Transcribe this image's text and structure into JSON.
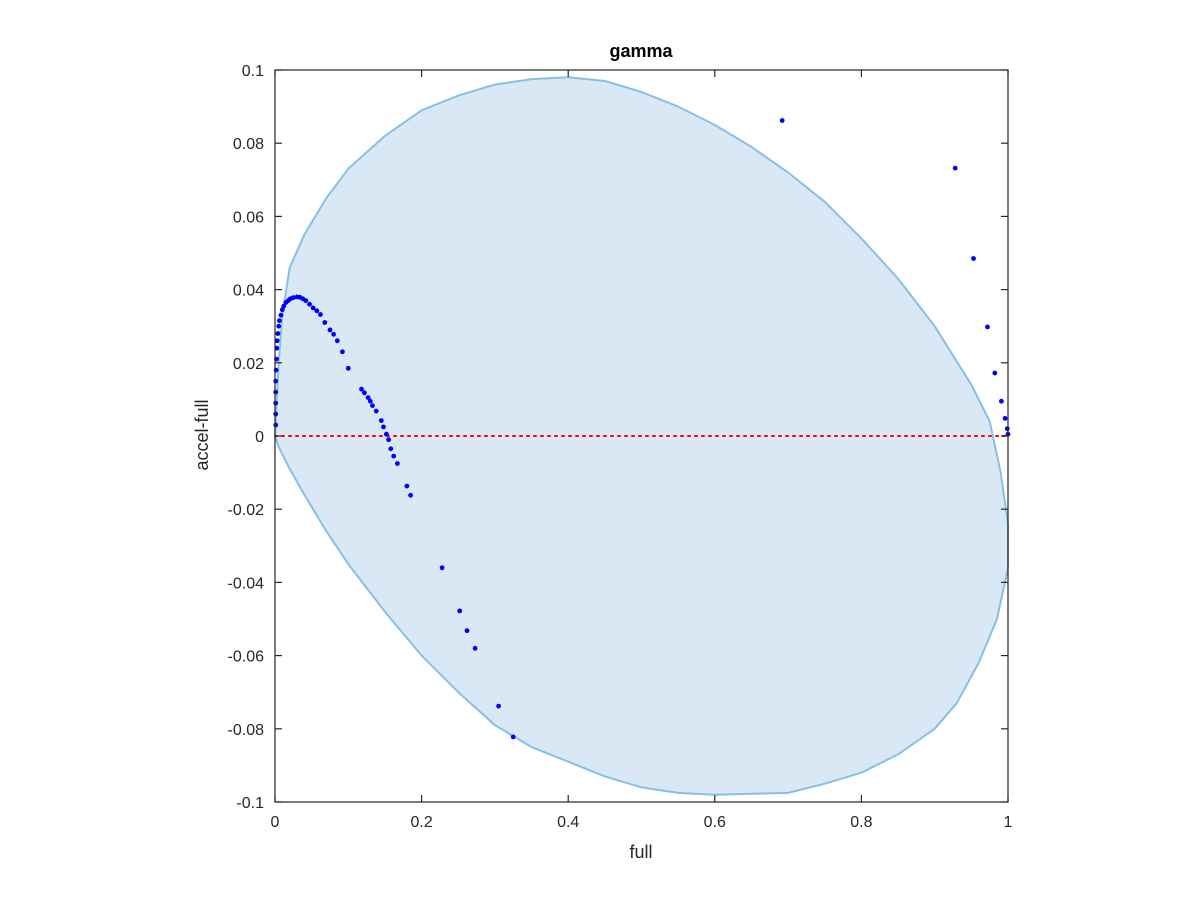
{
  "chart_data": {
    "type": "scatter",
    "title": "gamma",
    "xlabel": "full",
    "ylabel": "accel-full",
    "xlim": [
      0,
      1
    ],
    "ylim": [
      -0.1,
      0.1
    ],
    "xticks": [
      0,
      0.2,
      0.4,
      0.6,
      0.8,
      1
    ],
    "xtick_labels": [
      "0",
      "0.2",
      "0.4",
      "0.6",
      "0.8",
      "1"
    ],
    "yticks": [
      -0.1,
      -0.08,
      -0.06,
      -0.04,
      -0.02,
      0,
      0.02,
      0.04,
      0.06,
      0.08,
      0.1
    ],
    "ytick_labels": [
      "-0.1",
      "-0.08",
      "-0.06",
      "-0.04",
      "-0.02",
      "0",
      "0.02",
      "0.04",
      "0.06",
      "0.08",
      "0.1"
    ],
    "grid": false,
    "legend": "none",
    "colors": {
      "points": "#0000ff",
      "region_fill": "#d9e8f4",
      "region_edge": "#88c0e3",
      "zero_line": "#ff0000",
      "axes": "#262626"
    },
    "zero_line": {
      "y": 0,
      "style": "dotted"
    },
    "region": {
      "shape": "tilted ellipse",
      "boundary": [
        [
          0.0,
          0.0
        ],
        [
          0.005,
          0.02
        ],
        [
          0.01,
          0.033
        ],
        [
          0.02,
          0.046
        ],
        [
          0.04,
          0.055
        ],
        [
          0.07,
          0.065
        ],
        [
          0.1,
          0.073
        ],
        [
          0.15,
          0.082
        ],
        [
          0.2,
          0.089
        ],
        [
          0.25,
          0.093
        ],
        [
          0.3,
          0.096
        ],
        [
          0.35,
          0.0975
        ],
        [
          0.4,
          0.098
        ],
        [
          0.45,
          0.097
        ],
        [
          0.5,
          0.094
        ],
        [
          0.55,
          0.09
        ],
        [
          0.6,
          0.085
        ],
        [
          0.65,
          0.079
        ],
        [
          0.7,
          0.072
        ],
        [
          0.75,
          0.064
        ],
        [
          0.8,
          0.054
        ],
        [
          0.85,
          0.043
        ],
        [
          0.9,
          0.03
        ],
        [
          0.95,
          0.014
        ],
        [
          0.975,
          0.004
        ],
        [
          0.99,
          -0.01
        ],
        [
          1.0,
          -0.024
        ],
        [
          1.0,
          -0.036
        ],
        [
          0.985,
          -0.05
        ],
        [
          0.96,
          -0.062
        ],
        [
          0.93,
          -0.073
        ],
        [
          0.9,
          -0.08
        ],
        [
          0.85,
          -0.087
        ],
        [
          0.8,
          -0.092
        ],
        [
          0.75,
          -0.095
        ],
        [
          0.7,
          -0.0975
        ],
        [
          0.6,
          -0.098
        ],
        [
          0.55,
          -0.0975
        ],
        [
          0.5,
          -0.096
        ],
        [
          0.45,
          -0.093
        ],
        [
          0.4,
          -0.089
        ],
        [
          0.35,
          -0.085
        ],
        [
          0.3,
          -0.079
        ],
        [
          0.25,
          -0.07
        ],
        [
          0.2,
          -0.06
        ],
        [
          0.15,
          -0.048
        ],
        [
          0.1,
          -0.035
        ],
        [
          0.07,
          -0.026
        ],
        [
          0.04,
          -0.016
        ],
        [
          0.02,
          -0.009
        ],
        [
          0.005,
          -0.003
        ],
        [
          0.0,
          0.0
        ]
      ]
    },
    "points": [
      [
        0.001,
        0.003
      ],
      [
        0.001,
        0.006
      ],
      [
        0.001,
        0.009
      ],
      [
        0.001,
        0.012
      ],
      [
        0.001,
        0.015
      ],
      [
        0.0015,
        0.018
      ],
      [
        0.002,
        0.021
      ],
      [
        0.0025,
        0.024
      ],
      [
        0.003,
        0.026
      ],
      [
        0.004,
        0.028
      ],
      [
        0.005,
        0.03
      ],
      [
        0.006,
        0.0315
      ],
      [
        0.008,
        0.033
      ],
      [
        0.01,
        0.0345
      ],
      [
        0.012,
        0.0355
      ],
      [
        0.015,
        0.0365
      ],
      [
        0.018,
        0.037
      ],
      [
        0.021,
        0.0375
      ],
      [
        0.025,
        0.0378
      ],
      [
        0.03,
        0.038
      ],
      [
        0.034,
        0.0379
      ],
      [
        0.038,
        0.0375
      ],
      [
        0.042,
        0.037
      ],
      [
        0.047,
        0.036
      ],
      [
        0.052,
        0.035
      ],
      [
        0.057,
        0.0342
      ],
      [
        0.062,
        0.0332
      ],
      [
        0.068,
        0.031
      ],
      [
        0.075,
        0.029
      ],
      [
        0.08,
        0.0278
      ],
      [
        0.085,
        0.026
      ],
      [
        0.092,
        0.023
      ],
      [
        0.1,
        0.0185
      ],
      [
        0.118,
        0.0128
      ],
      [
        0.122,
        0.0118
      ],
      [
        0.127,
        0.0105
      ],
      [
        0.13,
        0.0095
      ],
      [
        0.133,
        0.0083
      ],
      [
        0.138,
        0.0068
      ],
      [
        0.145,
        0.0042
      ],
      [
        0.148,
        0.0025
      ],
      [
        0.152,
        0.0005
      ],
      [
        0.155,
        -0.001
      ],
      [
        0.158,
        -0.0035
      ],
      [
        0.162,
        -0.0055
      ],
      [
        0.167,
        -0.0075
      ],
      [
        0.18,
        -0.0137
      ],
      [
        0.185,
        -0.0162
      ],
      [
        0.228,
        -0.036
      ],
      [
        0.252,
        -0.0478
      ],
      [
        0.262,
        -0.0532
      ],
      [
        0.273,
        -0.058
      ],
      [
        0.305,
        -0.0738
      ],
      [
        0.325,
        -0.0822
      ],
      [
        0.692,
        0.0862
      ],
      [
        0.928,
        0.0732
      ],
      [
        0.953,
        0.0485
      ],
      [
        0.972,
        0.0298
      ],
      [
        0.982,
        0.0172
      ],
      [
        0.991,
        0.0095
      ],
      [
        0.996,
        0.0048
      ],
      [
        0.999,
        0.002
      ],
      [
        1.0,
        0.0005
      ]
    ]
  }
}
